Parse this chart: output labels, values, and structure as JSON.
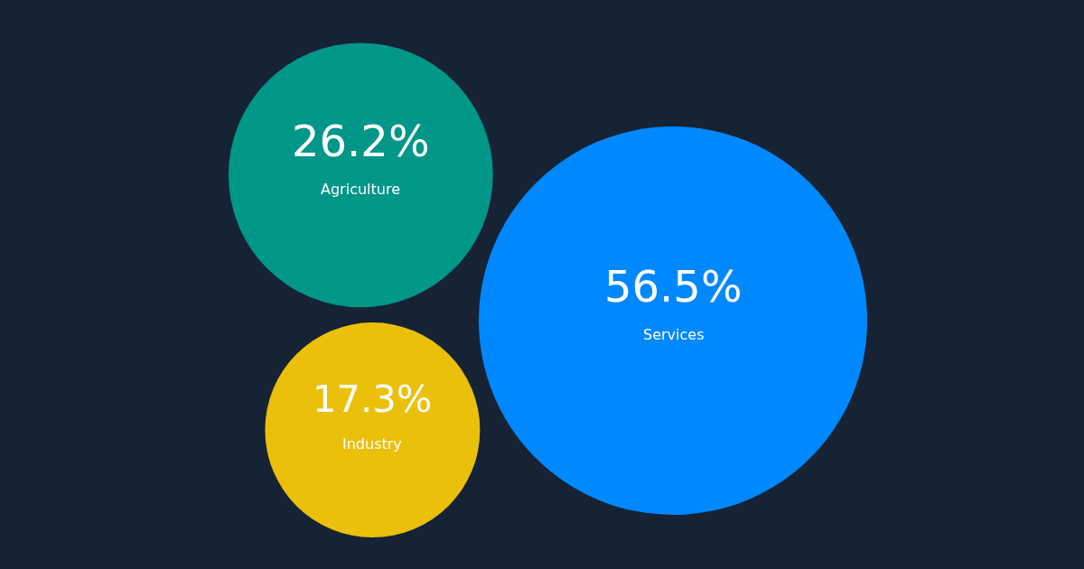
{
  "chart_data": {
    "type": "other",
    "categories": [
      "Agriculture",
      "Industry",
      "Services"
    ],
    "values": [
      26.2,
      17.3,
      56.5
    ],
    "value_labels": [
      "26.2%",
      "17.3%",
      "56.5%"
    ],
    "colors": [
      "#009688",
      "#ebc00b",
      "#0088ff"
    ]
  }
}
